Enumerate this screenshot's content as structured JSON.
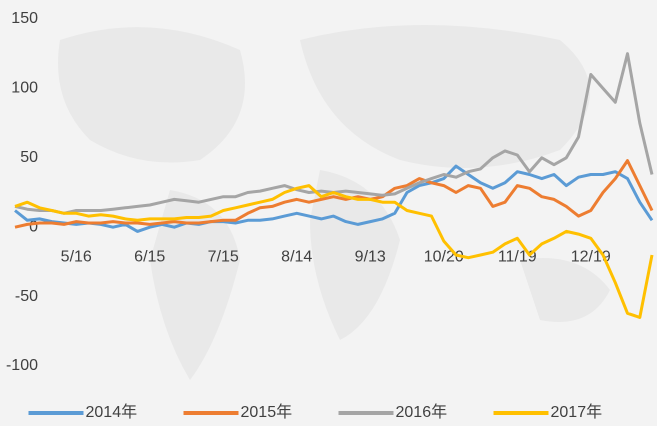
{
  "chart_data": {
    "type": "line",
    "categories": [
      null,
      null,
      null,
      null,
      null,
      "5/16",
      null,
      null,
      null,
      null,
      null,
      "6/15",
      null,
      null,
      null,
      null,
      null,
      "7/15",
      null,
      null,
      null,
      null,
      null,
      "8/14",
      null,
      null,
      null,
      null,
      null,
      "9/13",
      null,
      null,
      null,
      null,
      null,
      "10/20",
      null,
      null,
      null,
      null,
      null,
      "11/19",
      null,
      null,
      null,
      null,
      null,
      "12/19",
      null,
      null,
      null,
      null,
      null
    ],
    "series": [
      {
        "name": "2014年",
        "color": "#5b9bd5",
        "values": [
          12,
          5,
          6,
          4,
          3,
          2,
          3,
          2,
          0,
          2,
          -3,
          0,
          2,
          0,
          3,
          2,
          4,
          4,
          3,
          5,
          5,
          6,
          8,
          10,
          8,
          6,
          8,
          4,
          2,
          4,
          6,
          10,
          25,
          30,
          32,
          35,
          44,
          38,
          32,
          28,
          32,
          40,
          38,
          35,
          38,
          30,
          36,
          38,
          38,
          40,
          35,
          18,
          5
        ]
      },
      {
        "name": "2015年",
        "color": "#ed7d31",
        "values": [
          0,
          2,
          3,
          3,
          2,
          4,
          3,
          3,
          4,
          3,
          3,
          2,
          3,
          4,
          3,
          3,
          4,
          5,
          5,
          10,
          14,
          15,
          18,
          20,
          18,
          20,
          22,
          20,
          22,
          20,
          22,
          28,
          30,
          35,
          32,
          30,
          25,
          30,
          28,
          15,
          18,
          30,
          28,
          22,
          20,
          15,
          8,
          12,
          25,
          35,
          48,
          30,
          12
        ]
      },
      {
        "name": "2016年",
        "color": "#a5a5a5",
        "values": [
          15,
          13,
          12,
          12,
          10,
          12,
          12,
          12,
          13,
          14,
          15,
          16,
          18,
          20,
          19,
          18,
          20,
          22,
          22,
          25,
          26,
          28,
          30,
          27,
          25,
          26,
          25,
          26,
          25,
          24,
          23,
          24,
          28,
          32,
          35,
          38,
          36,
          40,
          42,
          50,
          55,
          52,
          40,
          50,
          45,
          50,
          65,
          110,
          100,
          90,
          125,
          75,
          38
        ]
      },
      {
        "name": "2017年",
        "color": "#ffc000",
        "values": [
          15,
          18,
          14,
          12,
          10,
          10,
          8,
          9,
          8,
          6,
          5,
          6,
          6,
          6,
          7,
          7,
          8,
          12,
          14,
          16,
          18,
          20,
          25,
          28,
          30,
          22,
          25,
          22,
          20,
          20,
          18,
          18,
          12,
          10,
          8,
          -10,
          -20,
          -22,
          -20,
          -18,
          -12,
          -8,
          -20,
          -12,
          -8,
          -3,
          -5,
          -8,
          -20,
          -40,
          -62,
          -65,
          -20
        ]
      }
    ],
    "ylim": [
      -100,
      150
    ],
    "yticks": [
      -100,
      -50,
      0,
      50,
      100,
      150
    ],
    "grid": false,
    "legend": "bottom"
  }
}
